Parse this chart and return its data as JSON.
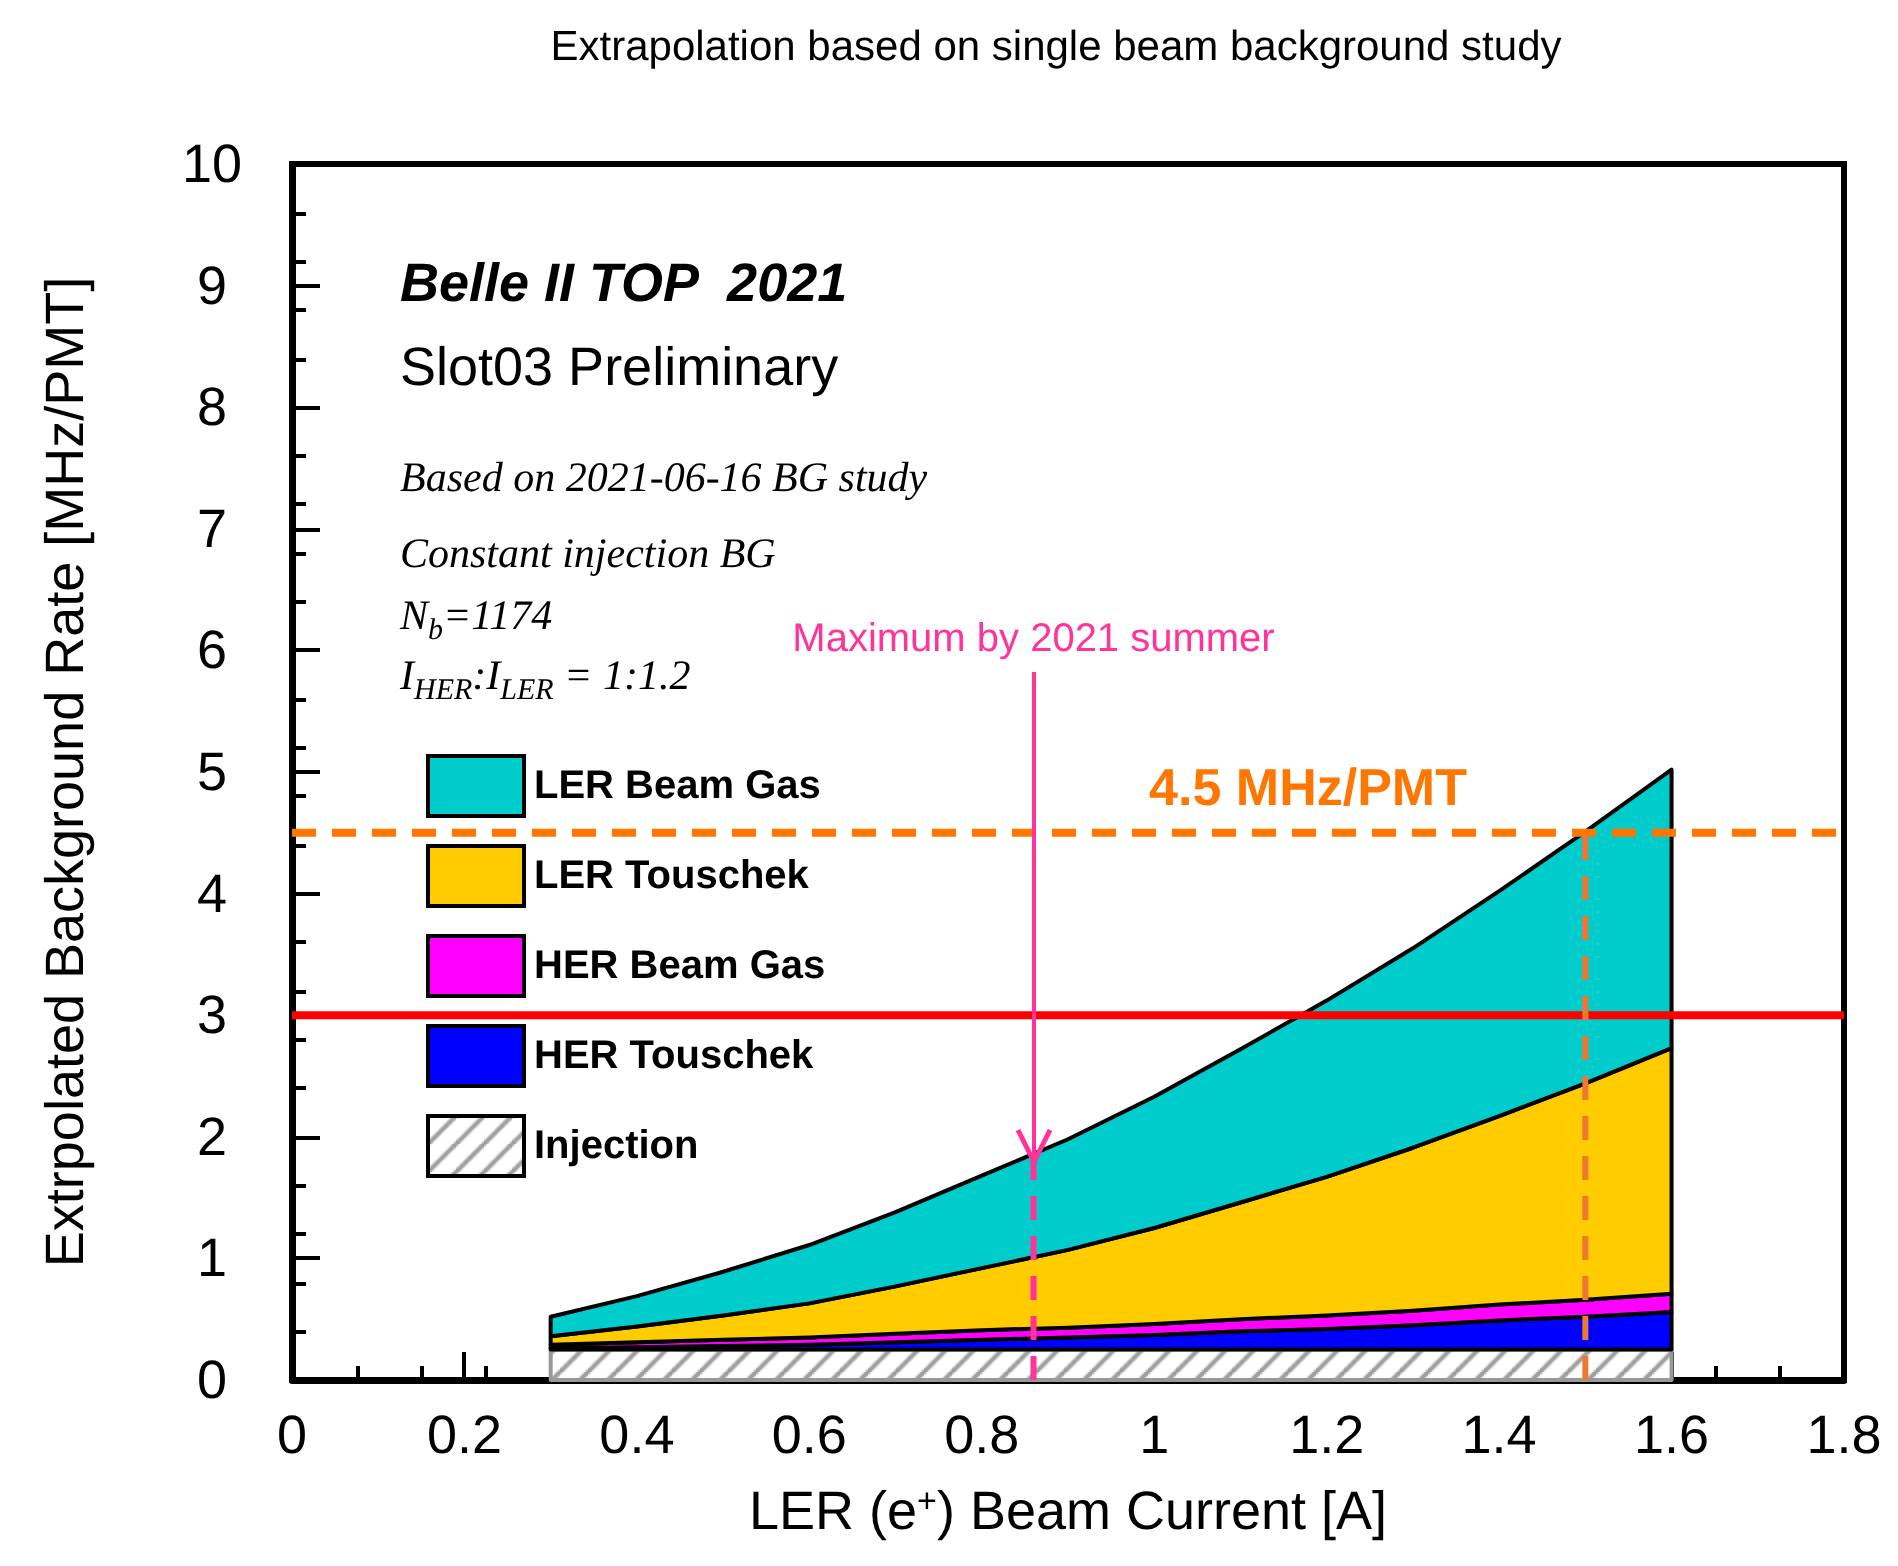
{
  "chart_data": {
    "type": "area",
    "title": "Extrapolation based on single beam background study",
    "xlabel": "LER (e$^{+}$) Beam Current [A]",
    "ylabel": "Extrpolated Background Rate [MHz/PMT]",
    "x": [
      0.3,
      0.4,
      0.5,
      0.6,
      0.7,
      0.8,
      0.9,
      1.0,
      1.1,
      1.2,
      1.3,
      1.4,
      1.5,
      1.6
    ],
    "stacked": true,
    "series": [
      {
        "name": "Injection",
        "color": "#999999",
        "values": [
          0.25,
          0.25,
          0.25,
          0.25,
          0.25,
          0.25,
          0.25,
          0.25,
          0.25,
          0.25,
          0.25,
          0.25,
          0.25,
          0.25
        ]
      },
      {
        "name": "HER Touschek",
        "color": "#0000ff",
        "values": [
          0.01,
          0.02,
          0.03,
          0.04,
          0.06,
          0.08,
          0.1,
          0.12,
          0.15,
          0.17,
          0.2,
          0.24,
          0.27,
          0.31
        ]
      },
      {
        "name": "HER Beam Gas",
        "color": "#ff00ff",
        "values": [
          0.03,
          0.04,
          0.05,
          0.06,
          0.07,
          0.08,
          0.08,
          0.09,
          0.1,
          0.11,
          0.12,
          0.13,
          0.14,
          0.15
        ]
      },
      {
        "name": "LER Touschek",
        "color": "#ffcc00",
        "values": [
          0.07,
          0.13,
          0.2,
          0.28,
          0.39,
          0.51,
          0.64,
          0.79,
          0.96,
          1.14,
          1.34,
          1.55,
          1.78,
          2.02
        ]
      },
      {
        "name": "LER Beam Gas",
        "color": "#00cccc",
        "values": [
          0.16,
          0.25,
          0.36,
          0.48,
          0.61,
          0.76,
          0.91,
          1.08,
          1.26,
          1.45,
          1.64,
          1.85,
          2.07,
          2.29
        ]
      }
    ],
    "xlim": [
      0,
      1.8
    ],
    "xticks": [
      0,
      0.2,
      0.4,
      0.6,
      0.8,
      1,
      1.2,
      1.4,
      1.6,
      1.8
    ],
    "ylim": [
      0,
      10
    ],
    "yticks": [
      0,
      1,
      2,
      3,
      4,
      5,
      6,
      7,
      8,
      9,
      10
    ],
    "ref_lines": [
      {
        "axis": "y",
        "value": 4.5,
        "label": "4.5 MHz/PMT",
        "color": "#ff7700",
        "line_style": "dashed"
      },
      {
        "axis": "y",
        "value": 3,
        "label": null,
        "color": "#ff0000",
        "line_style": "solid"
      },
      {
        "axis": "x",
        "value": 1.5,
        "label": null,
        "color": "#ee7733",
        "line_style": "dashed"
      },
      {
        "axis": "x",
        "value": 0.86,
        "label": null,
        "color": "#ff3399",
        "line_style": "dashed"
      }
    ],
    "annotations": [
      "Belle II TOP  2021",
      "Slot03 Preliminary",
      "Based on 2021-06-16 BG study",
      "Constant injection BG",
      "N$_{b}$=1174",
      "I$_{HER}$:I$_{LER}$ = 1:1.2",
      {
        "text": "Maximum by 2021 summer",
        "x": 0.86,
        "y": 1.8
      }
    ],
    "legend": "left",
    "grid": false
  }
}
